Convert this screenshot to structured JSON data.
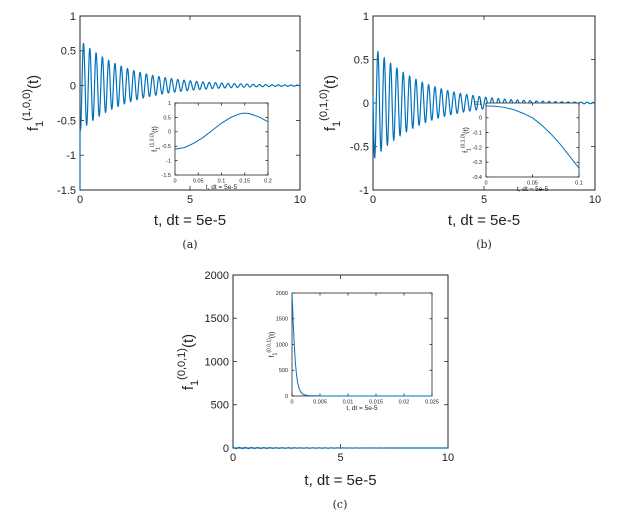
{
  "chart_data": [
    {
      "type": "line",
      "caption": "(a)",
      "xlabel": "t, dt = 5e-5",
      "ylabel": {
        "base": "f",
        "sub": "1",
        "sup": "(1,0,0)",
        "tail": "(t)"
      },
      "xlim": [
        0,
        10
      ],
      "ylim": [
        -1.5,
        1
      ],
      "xticks": [
        "0",
        "5",
        "10"
      ],
      "yticks": [
        "-1.5",
        "-1",
        "-0.5",
        "0",
        "0.5",
        "1"
      ],
      "signal": {
        "kind": "damped_oscillation",
        "amplitude": 0.65,
        "decay_rate": 0.45,
        "cycles_per_unit": 3.5,
        "start_value": -0.6
      },
      "inset": {
        "xlabel": "t, dt = 5e-5",
        "ylabel": {
          "base": "f",
          "sub": "1",
          "sup": "(1,0,0)",
          "tail": "(t)"
        },
        "xlim": [
          0,
          0.2
        ],
        "ylim": [
          -1.5,
          1
        ],
        "xticks": [
          "0",
          "0.05",
          "0.1",
          "0.15",
          "0.2"
        ],
        "yticks": [
          "-1.5",
          "-1",
          "-0.5",
          "0",
          "0.5",
          "1"
        ],
        "x": [
          0,
          0.02,
          0.04,
          0.06,
          0.08,
          0.1,
          0.12,
          0.14,
          0.15,
          0.16,
          0.18,
          0.2
        ],
        "y": [
          -0.6,
          -0.55,
          -0.4,
          -0.2,
          0.05,
          0.3,
          0.5,
          0.63,
          0.65,
          0.63,
          0.52,
          0.35
        ]
      }
    },
    {
      "type": "line",
      "caption": "(b)",
      "xlabel": "t, dt = 5e-5",
      "ylabel": {
        "base": "f",
        "sub": "1",
        "sup": "(0,1,0)",
        "tail": "(t)"
      },
      "xlim": [
        0,
        10
      ],
      "ylim": [
        -1,
        1
      ],
      "xticks": [
        "0",
        "5",
        "10"
      ],
      "yticks": [
        "-1",
        "-0.5",
        "0",
        "0.5",
        "1"
      ],
      "signal": {
        "kind": "damped_oscillation",
        "amplitude": 0.65,
        "decay_rate": 0.45,
        "cycles_per_unit": 3.5,
        "start_value": 0.08
      },
      "inset": {
        "xlabel": "t, dt = 5e-5",
        "ylabel": {
          "base": "f",
          "sub": "1",
          "sup": "(0,1,0)",
          "tail": "(t)"
        },
        "xlim": [
          0,
          0.1
        ],
        "ylim": [
          -0.4,
          0.1
        ],
        "xticks": [
          "0",
          "0.05",
          "0.1"
        ],
        "yticks": [
          "-0.4",
          "-0.3",
          "-0.2",
          "-0.1",
          "0",
          "0.1"
        ],
        "x": [
          0,
          0.01,
          0.02,
          0.03,
          0.04,
          0.05,
          0.06,
          0.07,
          0.08,
          0.09,
          0.1
        ],
        "y": [
          0.08,
          0.078,
          0.07,
          0.055,
          0.03,
          0.0,
          -0.05,
          -0.11,
          -0.18,
          -0.26,
          -0.34
        ]
      }
    },
    {
      "type": "line",
      "caption": "(c)",
      "xlabel": "t, dt = 5e-5",
      "ylabel": {
        "base": "f",
        "sub": "1",
        "sup": "(0,0,1)",
        "tail": "(t)"
      },
      "xlim": [
        0,
        10
      ],
      "ylim": [
        0,
        2000
      ],
      "xticks": [
        "0",
        "5",
        "10"
      ],
      "yticks": [
        "0",
        "500",
        "1000",
        "1500",
        "2000"
      ],
      "signal": {
        "kind": "near_zero",
        "amplitude": 8,
        "cycles_per_unit": 3.5
      },
      "inset": {
        "xlabel": "t, dt = 5e-5",
        "ylabel": {
          "base": "f",
          "sub": "1",
          "sup": "(0,0,1)",
          "tail": "(t)"
        },
        "xlim": [
          0,
          0.025
        ],
        "ylim": [
          0,
          2000
        ],
        "xticks": [
          "0",
          "0.005",
          "0.01",
          "0.015",
          "0.02",
          "0.025"
        ],
        "yticks": [
          "0",
          "500",
          "1000",
          "1500",
          "2000"
        ],
        "x": [
          0,
          0.0001,
          0.0002,
          0.0004,
          0.0006,
          0.0008,
          0.001,
          0.0013,
          0.0016,
          0.002,
          0.003,
          0.005,
          0.01,
          0.025
        ],
        "y": [
          2000,
          1750,
          1450,
          1000,
          650,
          420,
          260,
          140,
          70,
          30,
          8,
          2,
          0,
          0
        ]
      }
    }
  ],
  "colors": {
    "line": "#0072bd",
    "axis": "#262626"
  }
}
